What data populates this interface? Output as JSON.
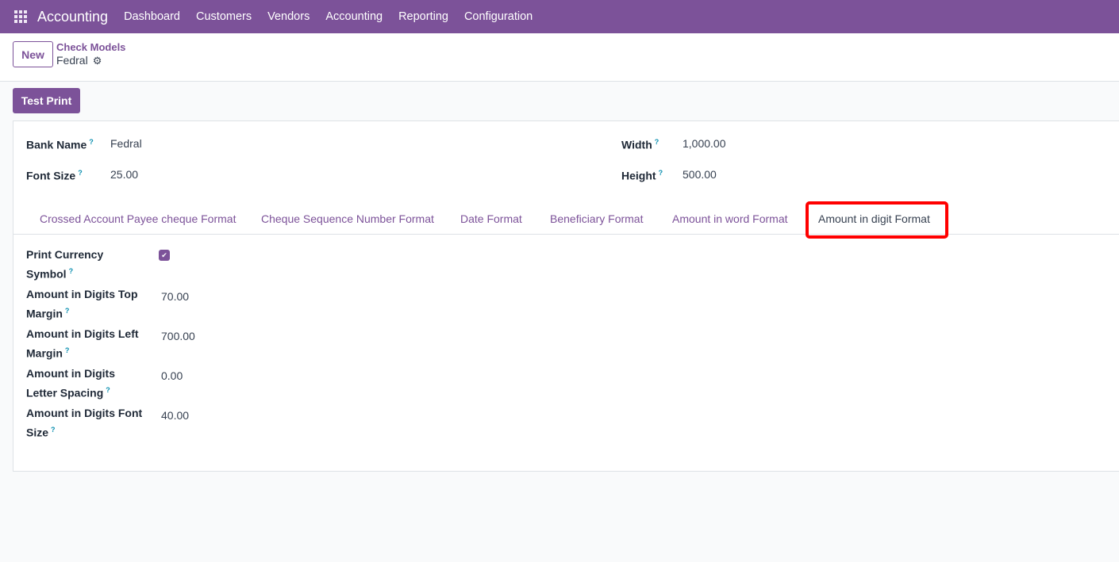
{
  "nav": {
    "app": "Accounting",
    "items": [
      "Dashboard",
      "Customers",
      "Vendors",
      "Accounting",
      "Reporting",
      "Configuration"
    ]
  },
  "control": {
    "new_label": "New",
    "breadcrumb_parent": "Check Models",
    "record_name": "Fedral"
  },
  "actions": {
    "test_print": "Test Print"
  },
  "fields": {
    "bank_name": {
      "label": "Bank Name",
      "value": "Fedral"
    },
    "font_size": {
      "label": "Font Size",
      "value": "25.00"
    },
    "width": {
      "label": "Width",
      "value": "1,000.00"
    },
    "height": {
      "label": "Height",
      "value": "500.00"
    }
  },
  "tabs": [
    "Crossed Account Payee cheque Format",
    "Cheque Sequence Number Format",
    "Date Format",
    "Beneficiary Format",
    "Amount in word Format",
    "Amount in digit Format"
  ],
  "active_tab": "Amount in digit Format",
  "tab_fields": [
    {
      "l1": "Print Currency",
      "l2": "Symbol",
      "value": "",
      "checked": true
    },
    {
      "l1": "Amount in Digits Top",
      "l2": "Margin",
      "value": "70.00"
    },
    {
      "l1": "Amount in Digits Left",
      "l2": "Margin",
      "value": "700.00"
    },
    {
      "l1": "Amount in Digits",
      "l2": "Letter Spacing",
      "value": "0.00"
    },
    {
      "l1": "Amount in Digits Font",
      "l2": "Size",
      "value": "40.00"
    }
  ],
  "help_mark": "?",
  "colors": {
    "brand": "#7c5299",
    "highlight": "#ff0000",
    "help": "#0b8fb0"
  }
}
